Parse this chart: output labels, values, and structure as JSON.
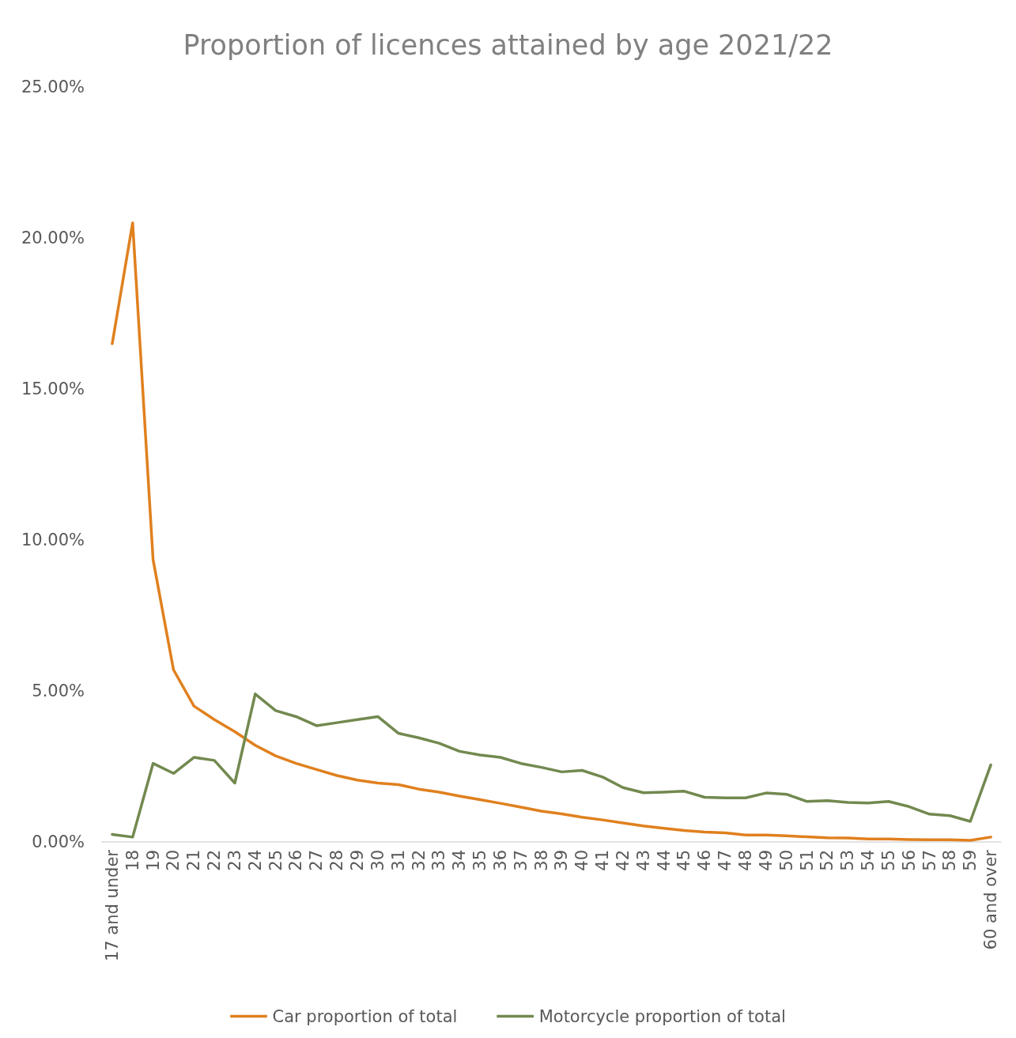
{
  "chart_data": {
    "type": "line",
    "title": "Proportion of licences attained by age 2021/22",
    "categories": [
      "17 and under",
      "18",
      "19",
      "20",
      "21",
      "22",
      "23",
      "24",
      "25",
      "26",
      "27",
      "28",
      "29",
      "30",
      "31",
      "32",
      "33",
      "34",
      "35",
      "36",
      "37",
      "38",
      "39",
      "40",
      "41",
      "42",
      "43",
      "44",
      "45",
      "46",
      "47",
      "48",
      "49",
      "50",
      "51",
      "52",
      "53",
      "54",
      "55",
      "56",
      "57",
      "58",
      "59",
      "60 and over"
    ],
    "series": [
      {
        "name": "Car proportion of total",
        "color": "#e0801e",
        "values": [
          16.5,
          20.5,
          9.35,
          5.7,
          4.5,
          4.05,
          3.65,
          3.2,
          2.85,
          2.6,
          2.4,
          2.2,
          2.05,
          1.95,
          1.9,
          1.75,
          1.65,
          1.52,
          1.4,
          1.28,
          1.15,
          1.02,
          0.93,
          0.82,
          0.73,
          0.63,
          0.53,
          0.45,
          0.38,
          0.33,
          0.3,
          0.23,
          0.23,
          0.2,
          0.17,
          0.14,
          0.13,
          0.1,
          0.1,
          0.08,
          0.07,
          0.07,
          0.05,
          0.16
        ]
      },
      {
        "name": "Motorcycle proportion of total",
        "color": "#72894f",
        "values": [
          0.25,
          0.16,
          2.6,
          2.27,
          2.8,
          2.7,
          1.95,
          4.9,
          4.35,
          4.15,
          3.85,
          3.95,
          4.05,
          4.15,
          3.6,
          3.45,
          3.27,
          3.0,
          2.88,
          2.8,
          2.6,
          2.47,
          2.32,
          2.37,
          2.15,
          1.8,
          1.63,
          1.65,
          1.68,
          1.48,
          1.46,
          1.46,
          1.62,
          1.58,
          1.34,
          1.37,
          1.31,
          1.29,
          1.34,
          1.17,
          0.92,
          0.87,
          0.68,
          2.55
        ]
      }
    ],
    "ylim": [
      0,
      25
    ],
    "yticks": [
      {
        "value": 0,
        "label": "0.00%"
      },
      {
        "value": 5,
        "label": "5.00%"
      },
      {
        "value": 10,
        "label": "10.00%"
      },
      {
        "value": 15,
        "label": "15.00%"
      },
      {
        "value": 20,
        "label": "20.00%"
      },
      {
        "value": 25,
        "label": "25.00%"
      }
    ],
    "grid": false,
    "legend": "bottom",
    "marker": "none",
    "line_style": "solid"
  }
}
